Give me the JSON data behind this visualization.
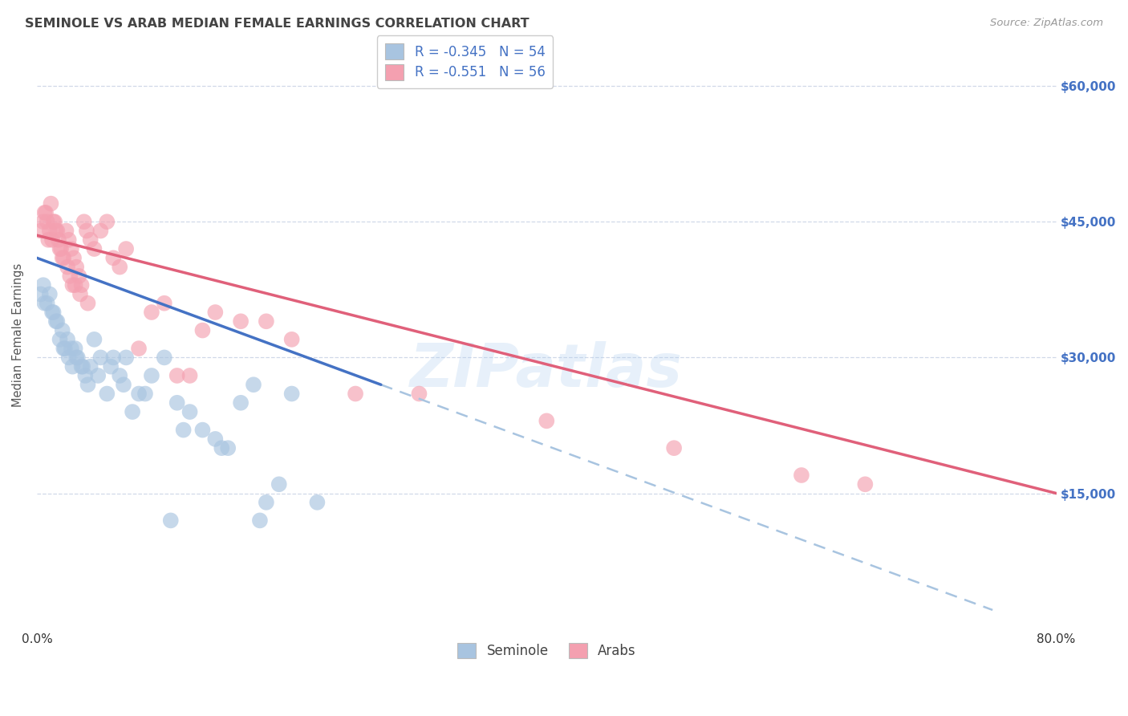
{
  "title": "SEMINOLE VS ARAB MEDIAN FEMALE EARNINGS CORRELATION CHART",
  "source": "Source: ZipAtlas.com",
  "ylabel": "Median Female Earnings",
  "y_tick_values": [
    15000,
    30000,
    45000,
    60000
  ],
  "y_right_labels": [
    "$15,000",
    "$30,000",
    "$45,000",
    "$60,000"
  ],
  "xlim": [
    0.0,
    80.0
  ],
  "ylim": [
    0,
    65000
  ],
  "seminole_R": -0.345,
  "seminole_N": 54,
  "arab_R": -0.551,
  "arab_N": 56,
  "seminole_color": "#a8c4e0",
  "arab_color": "#f4a0b0",
  "seminole_line_color": "#4472c4",
  "arab_line_color": "#e0607a",
  "watermark": "ZIPatlas",
  "background_color": "#ffffff",
  "grid_color": "#d0d8e8",
  "seminole_x": [
    4.5,
    5.0,
    0.5,
    0.8,
    1.2,
    1.5,
    1.8,
    2.0,
    2.2,
    2.5,
    2.8,
    3.0,
    3.2,
    3.5,
    3.8,
    4.0,
    4.2,
    5.5,
    6.0,
    6.5,
    7.0,
    8.0,
    9.0,
    10.0,
    11.0,
    12.0,
    13.0,
    14.0,
    15.0,
    16.0,
    17.0,
    18.0,
    20.0,
    0.3,
    0.6,
    1.0,
    1.3,
    1.6,
    2.1,
    2.4,
    2.7,
    3.1,
    3.6,
    4.8,
    5.8,
    6.8,
    8.5,
    11.5,
    14.5,
    19.0,
    7.5,
    22.0,
    10.5,
    17.5
  ],
  "seminole_y": [
    32000,
    30000,
    38000,
    36000,
    35000,
    34000,
    32000,
    33000,
    31000,
    30000,
    29000,
    31000,
    30000,
    29000,
    28000,
    27000,
    29000,
    26000,
    30000,
    28000,
    30000,
    26000,
    28000,
    30000,
    25000,
    24000,
    22000,
    21000,
    20000,
    25000,
    27000,
    14000,
    26000,
    37000,
    36000,
    37000,
    35000,
    34000,
    31000,
    32000,
    31000,
    30000,
    29000,
    28000,
    29000,
    27000,
    26000,
    22000,
    20000,
    16000,
    24000,
    14000,
    12000,
    12000
  ],
  "arab_x": [
    0.3,
    0.5,
    0.7,
    0.9,
    1.1,
    1.3,
    1.5,
    1.7,
    1.9,
    2.1,
    2.3,
    2.5,
    2.7,
    2.9,
    3.1,
    3.3,
    3.5,
    3.7,
    3.9,
    4.2,
    4.5,
    5.0,
    5.5,
    6.0,
    6.5,
    7.0,
    8.0,
    9.0,
    10.0,
    11.0,
    12.0,
    13.0,
    14.0,
    16.0,
    18.0,
    20.0,
    25.0,
    30.0,
    40.0,
    50.0,
    60.0,
    65.0,
    0.6,
    0.8,
    1.0,
    1.2,
    1.4,
    1.6,
    1.8,
    2.0,
    2.4,
    2.6,
    2.8,
    3.0,
    3.4,
    4.0
  ],
  "arab_y": [
    44000,
    45000,
    46000,
    43000,
    47000,
    45000,
    44000,
    43000,
    42000,
    41000,
    44000,
    43000,
    42000,
    41000,
    40000,
    39000,
    38000,
    45000,
    44000,
    43000,
    42000,
    44000,
    45000,
    41000,
    40000,
    42000,
    31000,
    35000,
    36000,
    28000,
    28000,
    33000,
    35000,
    34000,
    34000,
    32000,
    26000,
    26000,
    23000,
    20000,
    17000,
    16000,
    46000,
    45000,
    44000,
    43000,
    45000,
    44000,
    42000,
    41000,
    40000,
    39000,
    38000,
    38000,
    37000,
    36000
  ],
  "sem_line_x0": 0.0,
  "sem_line_y0": 41000,
  "sem_line_x1": 27.0,
  "sem_line_y1": 27000,
  "sem_dash_x0": 27.0,
  "sem_dash_x1": 75.0,
  "arab_line_x0": 0.0,
  "arab_line_y0": 43500,
  "arab_line_x1": 80.0,
  "arab_line_y1": 15000
}
